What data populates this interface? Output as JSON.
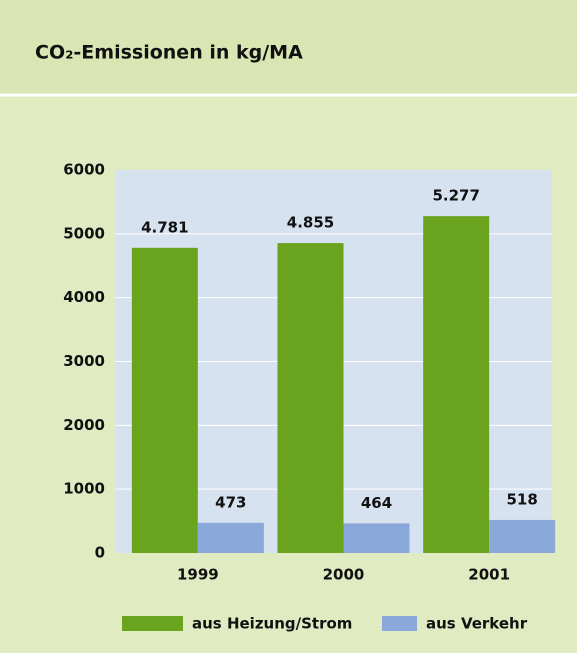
{
  "chart_data": {
    "type": "bar",
    "title": "CO₂-Emissionen in kg/MA",
    "categories": [
      "1999",
      "2000",
      "2001"
    ],
    "series": [
      {
        "name": "aus Heizung/Strom",
        "color": "#6aa31e",
        "values": [
          4781,
          4855,
          5277
        ],
        "value_labels": [
          "4.781",
          "4.855",
          "5.277"
        ]
      },
      {
        "name": "aus Verkehr",
        "color": "#8aa8d9",
        "values": [
          473,
          464,
          518
        ]
      }
    ],
    "ylim": [
      0,
      6000
    ],
    "yticks": [
      0,
      1000,
      2000,
      3000,
      4000,
      5000,
      6000
    ],
    "grid": true
  }
}
